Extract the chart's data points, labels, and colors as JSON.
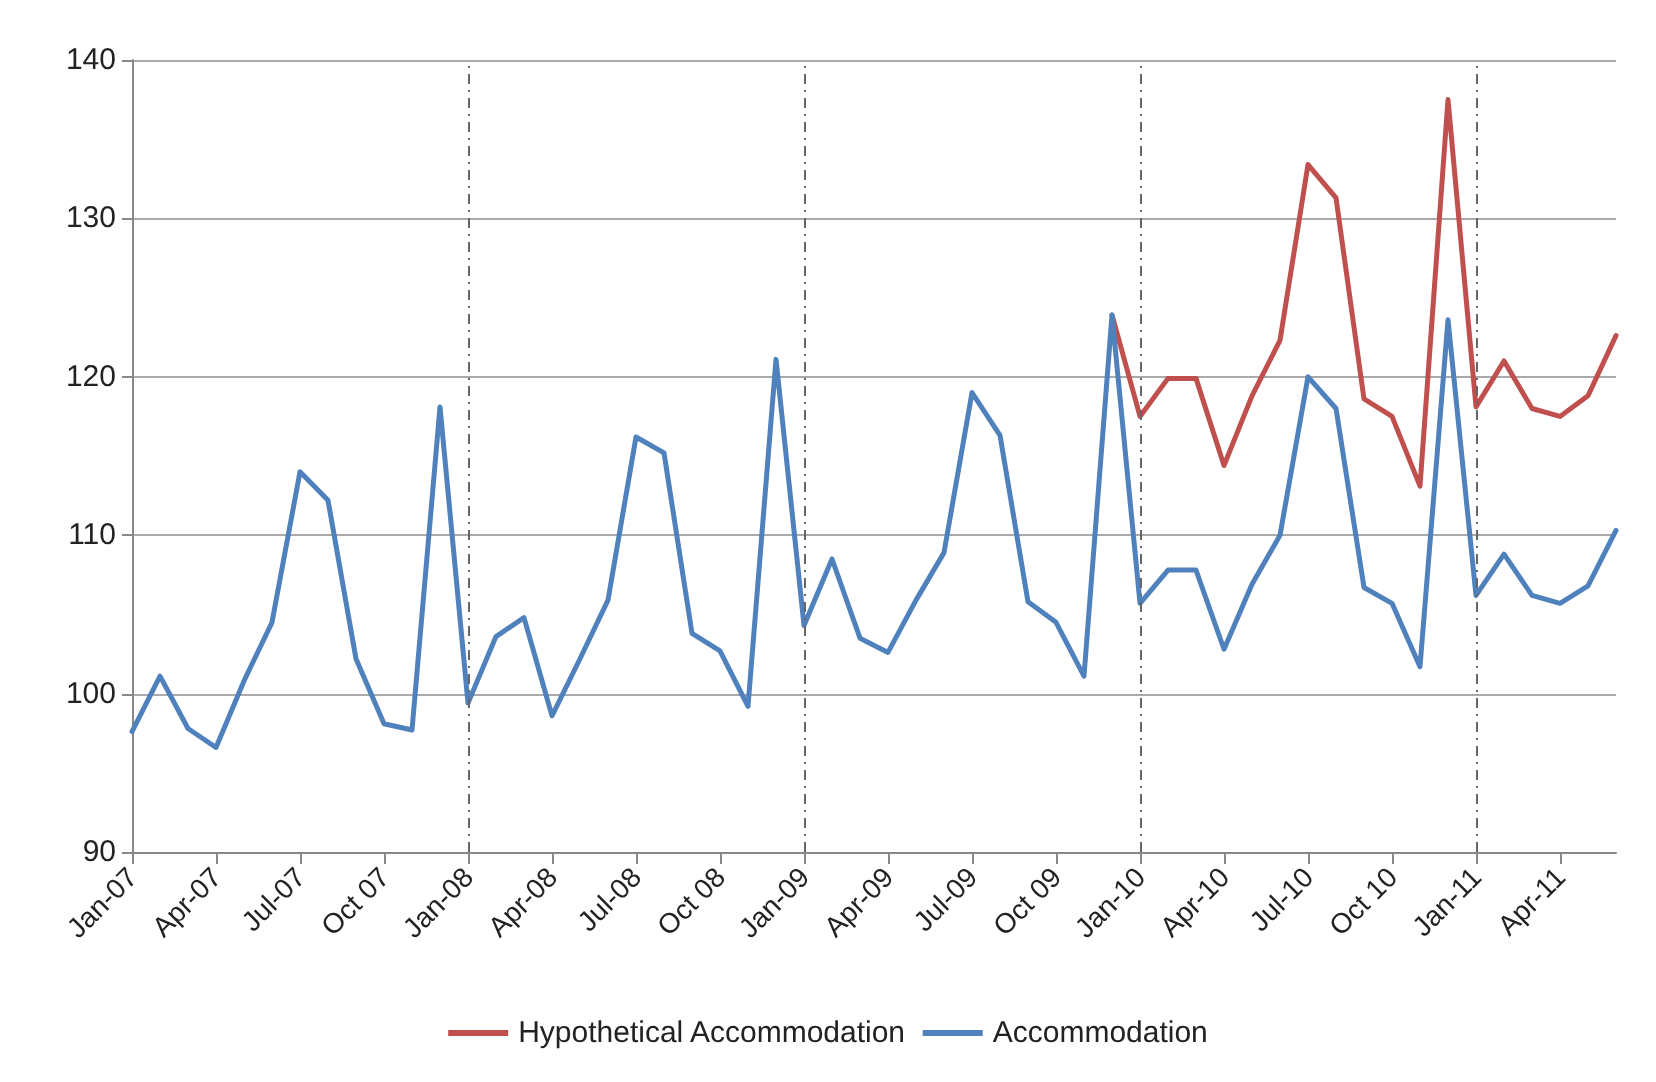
{
  "chart_data": {
    "type": "line",
    "categories": [
      "Jan-07",
      null,
      null,
      "Apr-07",
      null,
      null,
      "Jul-07",
      null,
      null,
      "Oct 07",
      null,
      null,
      "Jan-08",
      null,
      null,
      "Apr-08",
      null,
      null,
      "Jul-08",
      null,
      null,
      "Oct 08",
      null,
      null,
      "Jan-09",
      null,
      null,
      "Apr-09",
      null,
      null,
      "Jul-09",
      null,
      null,
      "Oct 09",
      null,
      null,
      "Jan-10",
      null,
      null,
      "Apr-10",
      null,
      null,
      "Jul-10",
      null,
      null,
      "Oct 10",
      null,
      null,
      "Jan-11",
      null,
      null,
      "Apr-11",
      null,
      null
    ],
    "series": [
      {
        "name": "Hypothetical Accommodation",
        "color": "#c0504d",
        "values": [
          null,
          null,
          null,
          null,
          null,
          null,
          null,
          null,
          null,
          null,
          null,
          null,
          null,
          null,
          null,
          null,
          null,
          null,
          null,
          null,
          null,
          null,
          null,
          null,
          null,
          null,
          null,
          null,
          null,
          null,
          null,
          null,
          null,
          null,
          null,
          123.9,
          117.5,
          119.9,
          119.9,
          114.4,
          118.8,
          122.3,
          133.4,
          131.3,
          118.6,
          117.5,
          113.1,
          137.5,
          118.1,
          121.0,
          118.0,
          117.5,
          118.8,
          122.6
        ]
      },
      {
        "name": "Accommodation",
        "color": "#4f81bd",
        "values": [
          97.6,
          101.1,
          97.8,
          96.6,
          100.8,
          104.5,
          114.0,
          112.2,
          102.2,
          98.1,
          97.7,
          118.1,
          99.4,
          103.6,
          104.8,
          98.6,
          102.2,
          105.9,
          116.2,
          115.2,
          103.8,
          102.7,
          99.2,
          121.1,
          104.3,
          108.5,
          103.5,
          102.6,
          105.9,
          108.9,
          119.0,
          116.3,
          105.8,
          104.5,
          101.1,
          123.9,
          105.7,
          107.8,
          107.8,
          102.8,
          106.9,
          110.0,
          120.0,
          118.0,
          106.7,
          105.7,
          101.7,
          123.6,
          106.2,
          108.8,
          106.2,
          105.7,
          106.8,
          110.3
        ]
      }
    ],
    "ylim": [
      90,
      140
    ],
    "yticks": [
      90,
      100,
      110,
      120,
      130,
      140
    ],
    "grid": "y",
    "legend": "bottom",
    "marker": "none",
    "line_style": "solid",
    "ref_lines": [
      {
        "axis": "x",
        "value": "Jan-08",
        "color": "#666666",
        "line_style": "dashed"
      },
      {
        "axis": "x",
        "value": "Jan-09",
        "color": "#666666",
        "line_style": "dashed"
      },
      {
        "axis": "x",
        "value": "Jan-10",
        "color": "#666666",
        "line_style": "dashed"
      },
      {
        "axis": "x",
        "value": "Jan-11",
        "color": "#666666",
        "line_style": "dashed"
      }
    ]
  }
}
